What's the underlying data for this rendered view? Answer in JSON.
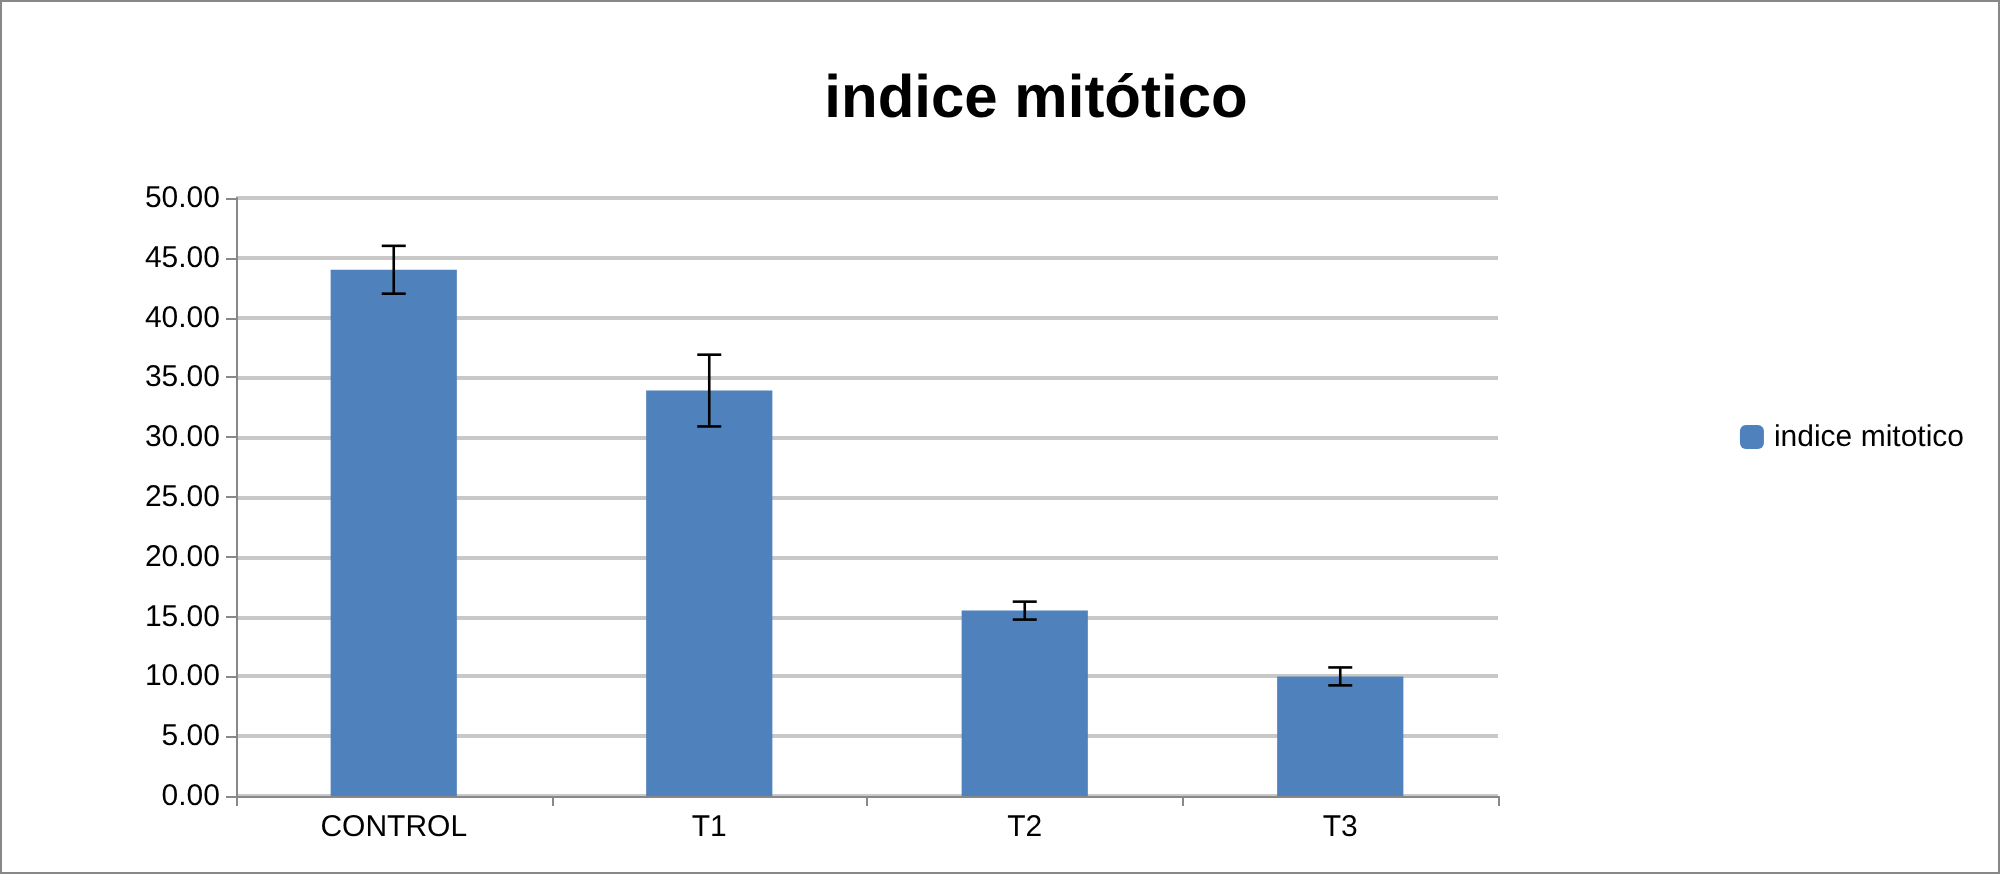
{
  "chart_data": {
    "type": "bar",
    "title": "indice mitótico",
    "categories": [
      "CONTROL",
      "T1",
      "T2",
      "T3"
    ],
    "series": [
      {
        "name": "indice mitotico",
        "color": "#4f81bd",
        "values": [
          44.0,
          33.9,
          15.5,
          10.0
        ],
        "errors": [
          2.0,
          3.0,
          0.75,
          0.75
        ]
      }
    ],
    "ylim": [
      0,
      50
    ],
    "yticks": [
      {
        "value": 0,
        "label": "0.00"
      },
      {
        "value": 5,
        "label": "5.00"
      },
      {
        "value": 10,
        "label": "10.00"
      },
      {
        "value": 15,
        "label": "15.00"
      },
      {
        "value": 20,
        "label": "20.00"
      },
      {
        "value": 25,
        "label": "25.00"
      },
      {
        "value": 30,
        "label": "30.00"
      },
      {
        "value": 35,
        "label": "35.00"
      },
      {
        "value": 40,
        "label": "40.00"
      },
      {
        "value": 45,
        "label": "45.00"
      },
      {
        "value": 50,
        "label": "50.00"
      }
    ],
    "grid": "y",
    "legend": "right"
  }
}
